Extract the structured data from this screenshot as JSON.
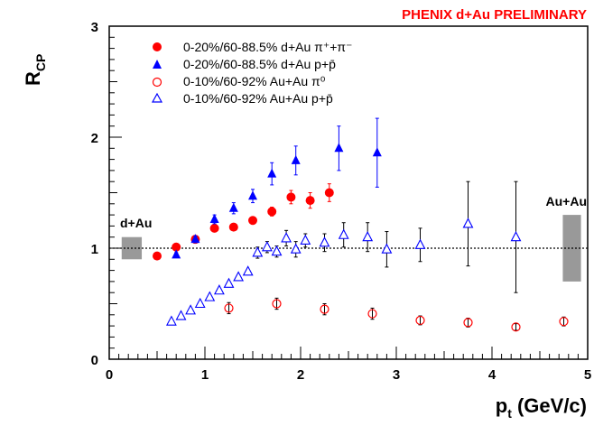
{
  "chart_data": {
    "type": "scatter",
    "banner": "PHENIX d+Au PRELIMINARY",
    "xlabel": {
      "main": "p",
      "sub": "t",
      "rest": " (GeV/c)"
    },
    "ylabel": {
      "main": "R",
      "sub": "CP"
    },
    "xlim": [
      0,
      5
    ],
    "ylim": [
      0,
      3
    ],
    "xticks": [
      "0",
      "1",
      "2",
      "3",
      "4",
      "5"
    ],
    "yticks": [
      "0",
      "1",
      "2",
      "3"
    ],
    "reference_line": 1,
    "annotations": {
      "left_box": "d+Au",
      "right_box": "Au+Au"
    },
    "norm_boxes": [
      {
        "label": "d+Au",
        "x": [
          0.13,
          0.34
        ],
        "y": [
          0.9,
          1.1
        ],
        "color": "#999999"
      },
      {
        "label": "Au+Au",
        "x": [
          4.74,
          4.93
        ],
        "y": [
          0.7,
          1.3
        ],
        "color": "#999999"
      }
    ],
    "legend": [
      "0-20%/60-88.5% d+Au π⁺+π⁻",
      "0-20%/60-88.5% d+Au p+p̄",
      "0-10%/60-92% Au+Au π⁰",
      "0-10%/60-92% Au+Au p+p̄"
    ],
    "series": [
      {
        "marker": "filled-circle",
        "color": "#ff0000",
        "x": [
          0.5,
          0.7,
          0.9,
          1.1,
          1.3,
          1.5,
          1.7,
          1.9,
          2.1,
          2.3
        ],
        "y": [
          0.93,
          1.01,
          1.08,
          1.18,
          1.19,
          1.25,
          1.33,
          1.46,
          1.43,
          1.5
        ],
        "err": [
          0.02,
          0.02,
          0.02,
          0.03,
          0.03,
          0.03,
          0.04,
          0.06,
          0.07,
          0.08
        ]
      },
      {
        "marker": "filled-triangle",
        "color": "#0000ff",
        "x": [
          0.7,
          0.9,
          1.1,
          1.3,
          1.5,
          1.7,
          1.95,
          2.4,
          2.8
        ],
        "y": [
          0.94,
          1.08,
          1.26,
          1.36,
          1.47,
          1.67,
          1.79,
          1.9,
          1.86
        ],
        "err": [
          0.02,
          0.03,
          0.04,
          0.05,
          0.06,
          0.1,
          0.13,
          0.2,
          0.31
        ]
      },
      {
        "marker": "open-circle",
        "color": "#ff0000",
        "x": [
          1.25,
          1.75,
          2.25,
          2.75,
          3.25,
          3.75,
          4.25,
          4.75
        ],
        "y": [
          0.46,
          0.5,
          0.45,
          0.41,
          0.35,
          0.33,
          0.29,
          0.34
        ],
        "err": [
          0.05,
          0.05,
          0.05,
          0.05,
          0.04,
          0.04,
          0.03,
          0.04
        ]
      },
      {
        "marker": "open-triangle",
        "color": "#0000ff",
        "x": [
          0.65,
          0.75,
          0.85,
          0.95,
          1.05,
          1.15,
          1.25,
          1.35,
          1.45,
          1.55,
          1.65,
          1.75,
          1.85,
          1.95,
          2.05,
          2.25,
          2.45,
          2.7,
          2.9,
          3.25,
          3.75,
          4.25
        ],
        "y": [
          0.34,
          0.39,
          0.44,
          0.5,
          0.56,
          0.62,
          0.68,
          0.74,
          0.79,
          0.96,
          1.01,
          0.97,
          1.09,
          0.99,
          1.07,
          1.05,
          1.12,
          1.1,
          0.99,
          1.03,
          1.22,
          1.1
        ],
        "err": [
          0.0,
          0.0,
          0.0,
          0.0,
          0.0,
          0.0,
          0.0,
          0.0,
          0.0,
          0.05,
          0.05,
          0.05,
          0.07,
          0.07,
          0.06,
          0.08,
          0.11,
          0.13,
          0.16,
          0.15,
          0.38,
          0.5
        ]
      }
    ]
  }
}
